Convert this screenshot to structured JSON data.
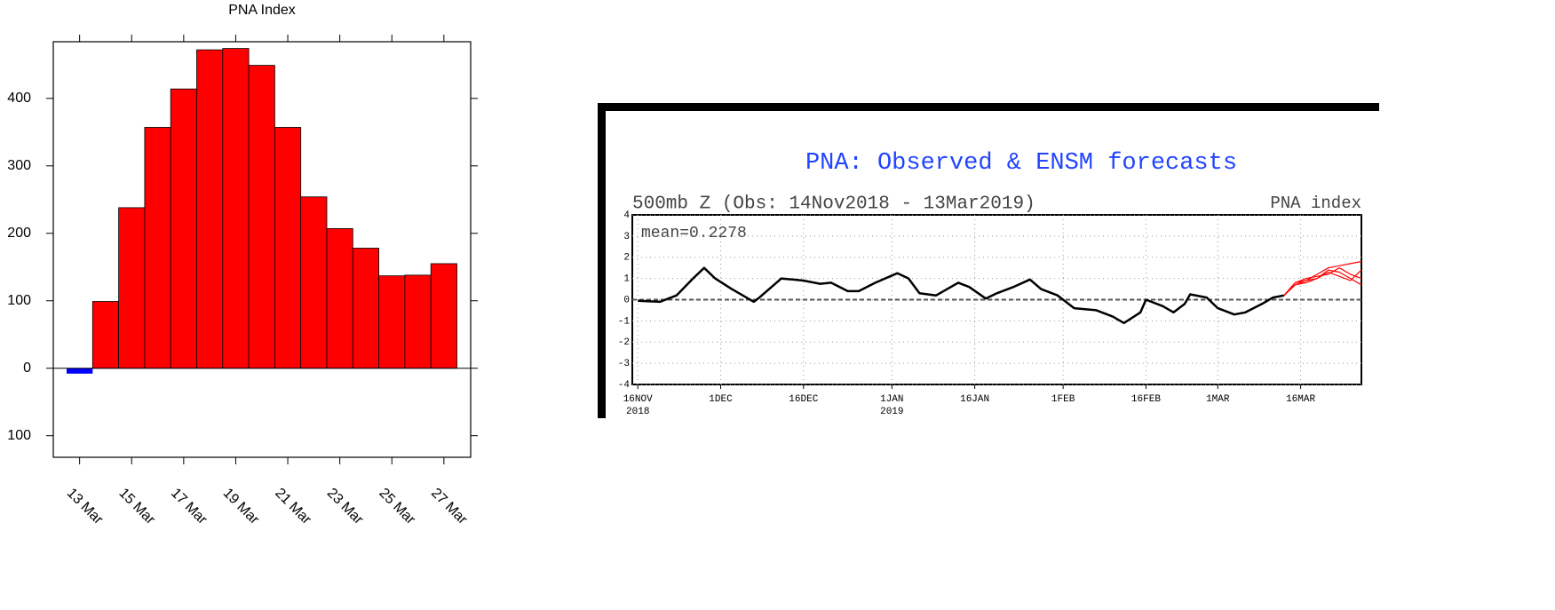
{
  "chart_data": [
    {
      "type": "bar",
      "title": "PNA Index",
      "categories": [
        "13 Mar",
        null,
        "15 Mar",
        null,
        "17 Mar",
        null,
        "19 Mar",
        null,
        "21 Mar",
        null,
        "23 Mar",
        null,
        "25 Mar",
        null,
        "27 Mar"
      ],
      "values": [
        -8,
        99,
        238,
        357,
        414,
        472,
        474,
        449,
        357,
        254,
        207,
        178,
        137,
        138,
        155
      ],
      "color": "#ff0000",
      "negative_color": "#0000ff",
      "ylim": [
        -132,
        484
      ],
      "yticks": [
        {
          "value": -100,
          "label": "100"
        },
        0,
        100,
        200,
        300,
        400
      ]
    },
    {
      "type": "line",
      "title": "PNA: Observed & ENSM forecasts",
      "subtitle": "500mb Z (Obs: 14Nov2018 - 13Mar2019)",
      "y_label": "PNA index",
      "annotation": "mean=0.2278",
      "xlim": [
        "2018-11-15",
        "2019-03-27"
      ],
      "xticks": [
        {
          "value": "2018-11-16",
          "label": "16NOV",
          "sublabel": "2018"
        },
        {
          "value": "2018-12-01",
          "label": "1DEC"
        },
        {
          "value": "2018-12-16",
          "label": "16DEC"
        },
        {
          "value": "2019-01-01",
          "label": "1JAN",
          "sublabel": "2019"
        },
        {
          "value": "2019-01-16",
          "label": "16JAN"
        },
        {
          "value": "2019-02-01",
          "label": "1FEB"
        },
        {
          "value": "2019-02-16",
          "label": "16FEB"
        },
        {
          "value": "2019-03-01",
          "label": "1MAR"
        },
        {
          "value": "2019-03-16",
          "label": "16MAR"
        }
      ],
      "ylim": [
        -4,
        4
      ],
      "yticks": [
        -4,
        -3,
        -2,
        -1,
        0,
        1,
        2,
        3,
        4
      ],
      "grid": true,
      "zero_line": 0,
      "series": [
        {
          "color": "#000000",
          "x": [
            "2018-11-16",
            "2018-11-20",
            "2018-11-23",
            "2018-11-26",
            "2018-11-28",
            "2018-11-30",
            "2018-12-03",
            "2018-12-05",
            "2018-12-07",
            "2018-12-08",
            "2018-12-12",
            "2018-12-14",
            "2018-12-16",
            "2018-12-19",
            "2018-12-21",
            "2018-12-24",
            "2018-12-26",
            "2018-12-29",
            "2019-01-02",
            "2019-01-04",
            "2019-01-06",
            "2019-01-09",
            "2019-01-13",
            "2019-01-15",
            "2019-01-18",
            "2019-01-20",
            "2019-01-23",
            "2019-01-26",
            "2019-01-28",
            "2019-01-31",
            "2019-02-03",
            "2019-02-07",
            "2019-02-10",
            "2019-02-12",
            "2019-02-15",
            "2019-02-16",
            "2019-02-19",
            "2019-02-21",
            "2019-02-23",
            "2019-02-24",
            "2019-02-27",
            "2019-03-01",
            "2019-03-04",
            "2019-03-06",
            "2019-03-09",
            "2019-03-11",
            "2019-03-13"
          ],
          "values": [
            -0.05,
            -0.1,
            0.2,
            1.0,
            1.5,
            1.0,
            0.5,
            0.2,
            -0.1,
            0.1,
            1.0,
            0.95,
            0.9,
            0.75,
            0.8,
            0.4,
            0.4,
            0.8,
            1.25,
            1.0,
            0.3,
            0.2,
            0.8,
            0.6,
            0.05,
            0.3,
            0.6,
            0.95,
            0.5,
            0.2,
            -0.4,
            -0.5,
            -0.8,
            -1.1,
            -0.6,
            0.0,
            -0.3,
            -0.6,
            -0.2,
            0.25,
            0.1,
            -0.4,
            -0.7,
            -0.6,
            -0.2,
            0.1,
            0.2
          ]
        },
        {
          "color": "#ff0000",
          "x": [
            "2019-03-13",
            "2019-03-15",
            "2019-03-17",
            "2019-03-19",
            "2019-03-21",
            "2019-03-23",
            "2019-03-25",
            "2019-03-27"
          ],
          "values": [
            0.2,
            0.8,
            0.9,
            1.2,
            1.5,
            1.6,
            1.7,
            1.8
          ]
        },
        {
          "color": "#ff0000",
          "x": [
            "2019-03-13",
            "2019-03-15",
            "2019-03-17",
            "2019-03-19",
            "2019-03-21",
            "2019-03-23",
            "2019-03-25",
            "2019-03-27"
          ],
          "values": [
            0.2,
            0.7,
            0.9,
            1.0,
            1.4,
            1.3,
            1.0,
            0.7
          ]
        },
        {
          "color": "#ff0000",
          "x": [
            "2019-03-13",
            "2019-03-15",
            "2019-03-17",
            "2019-03-19",
            "2019-03-21",
            "2019-03-23",
            "2019-03-25",
            "2019-03-27"
          ],
          "values": [
            0.2,
            0.8,
            1.0,
            1.1,
            1.2,
            1.5,
            1.2,
            1.0
          ]
        },
        {
          "color": "#ff0000",
          "x": [
            "2019-03-13",
            "2019-03-15",
            "2019-03-17",
            "2019-03-19",
            "2019-03-21",
            "2019-03-23",
            "2019-03-25",
            "2019-03-27"
          ],
          "values": [
            0.2,
            0.7,
            0.8,
            1.0,
            1.3,
            1.1,
            0.9,
            1.4
          ]
        }
      ]
    }
  ]
}
